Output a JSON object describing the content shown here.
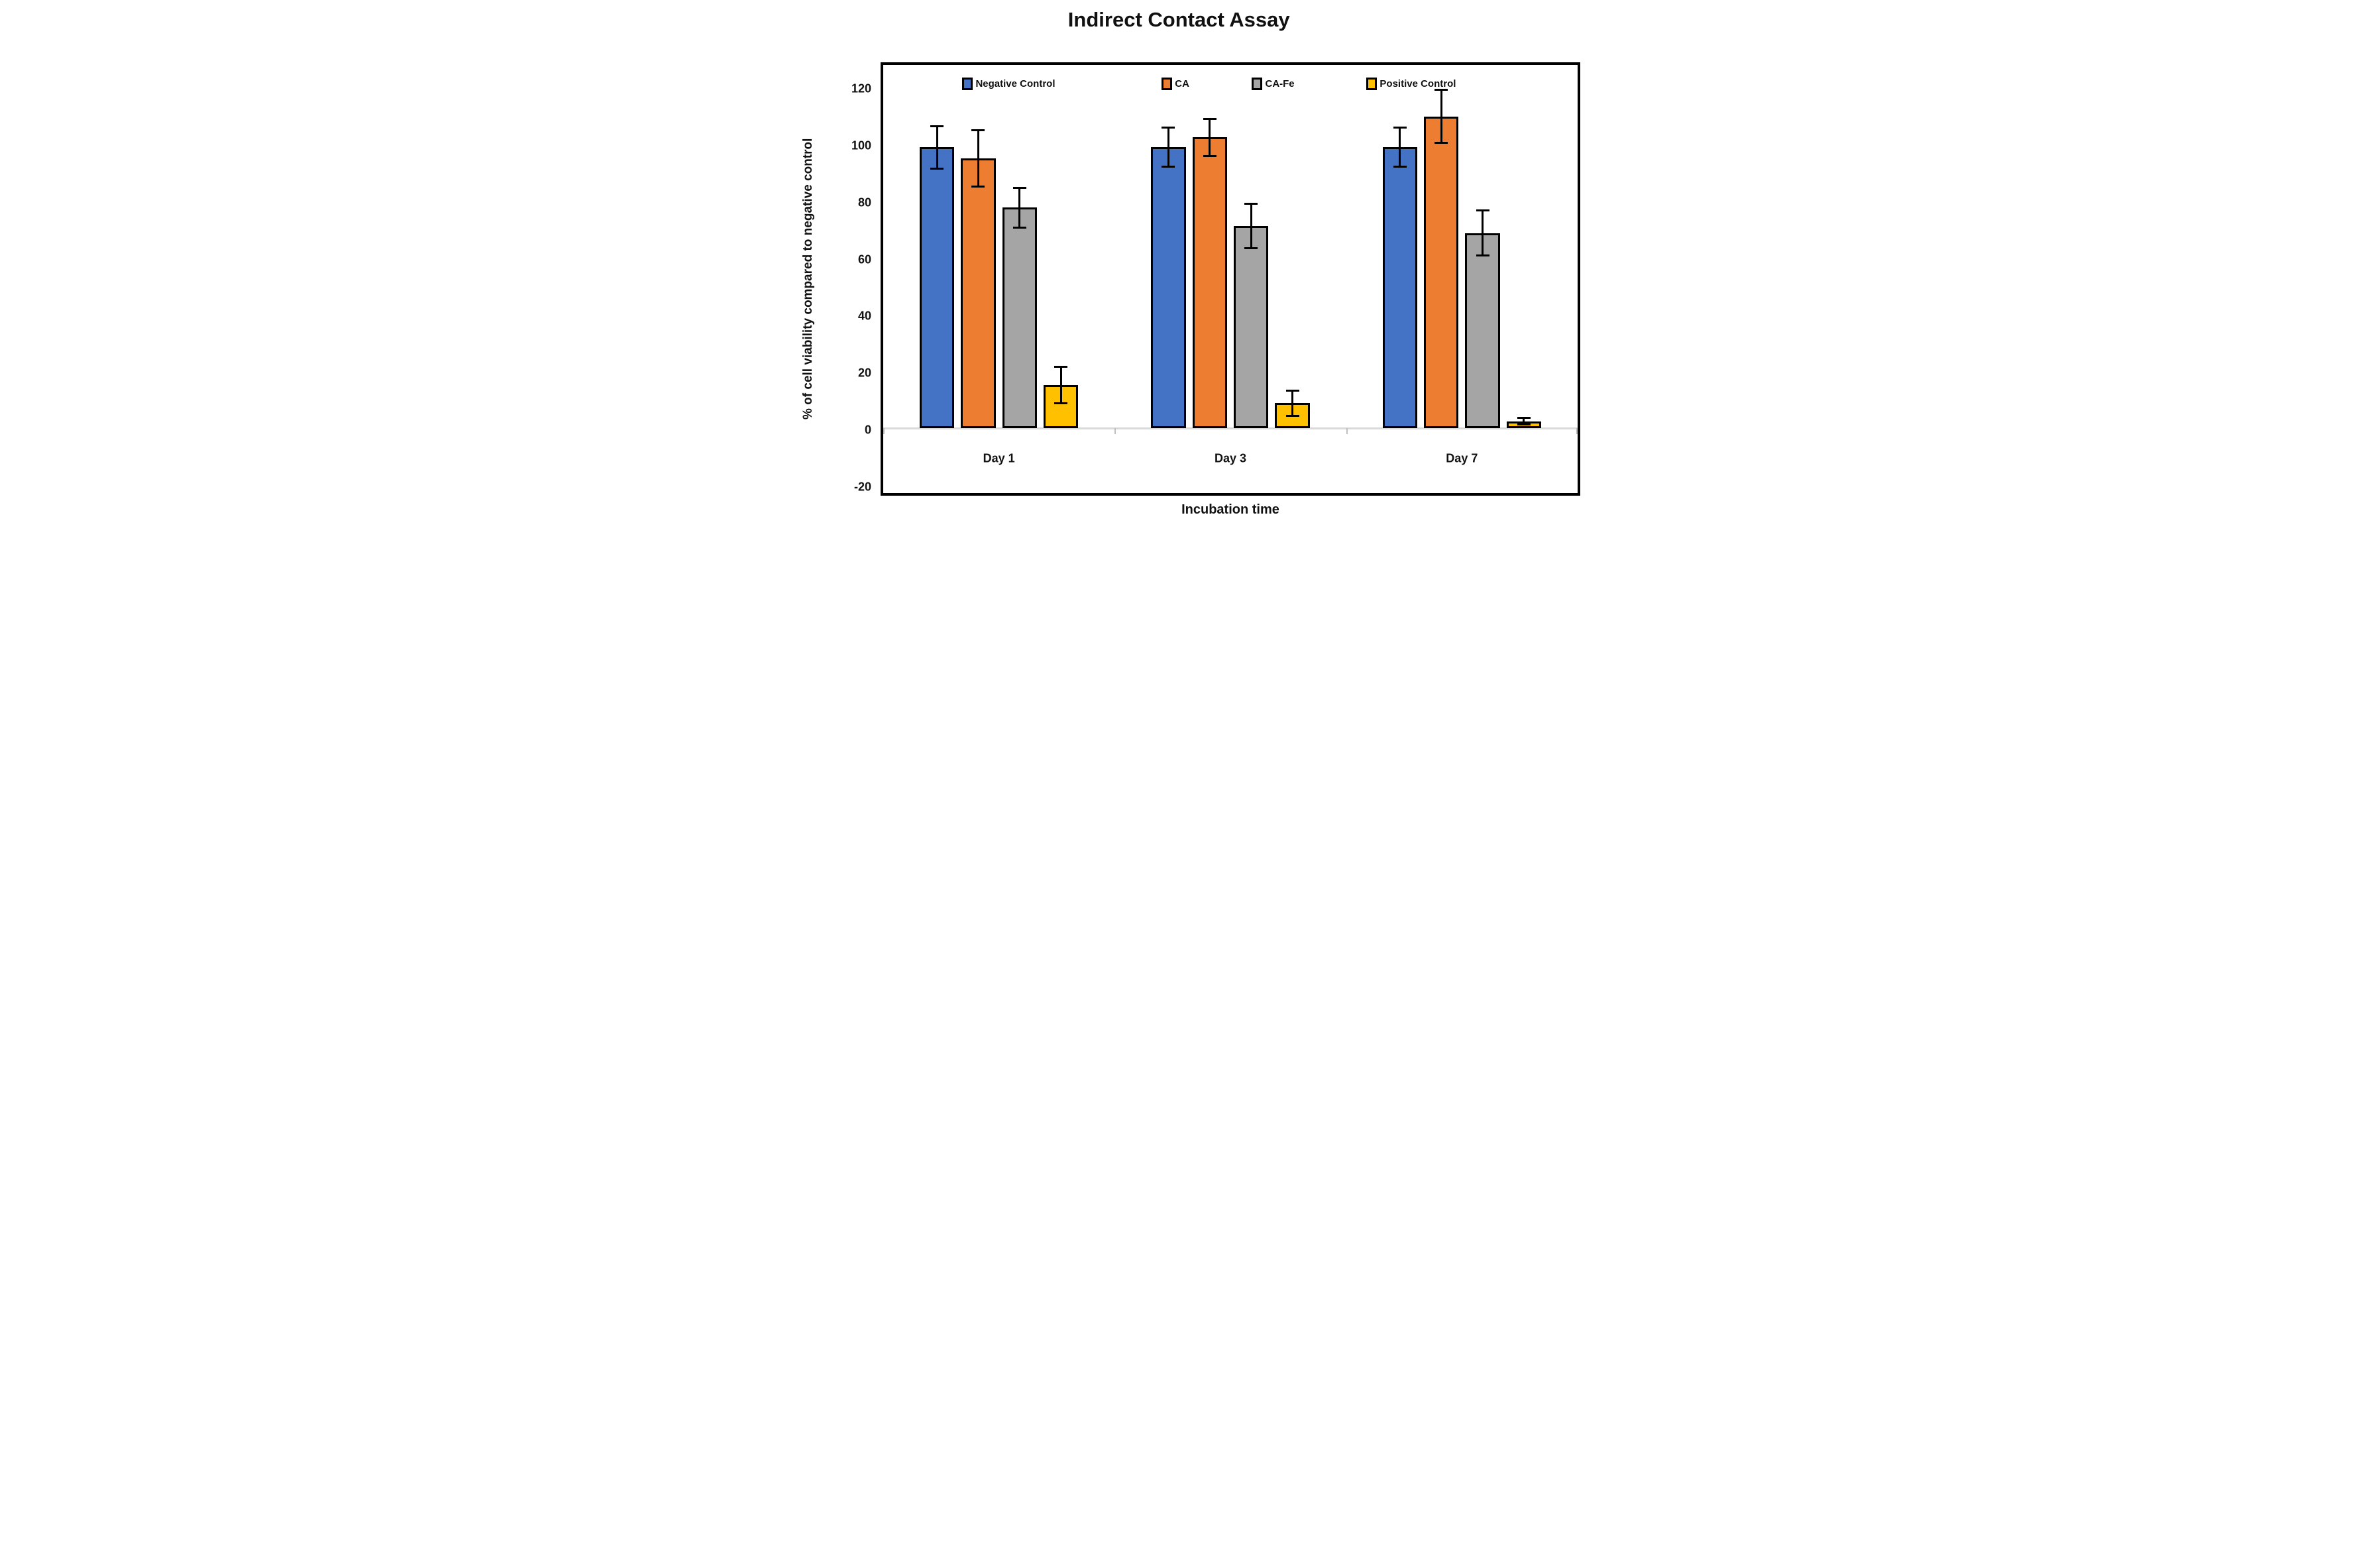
{
  "chart_data": {
    "type": "bar",
    "title": "Indirect Contact Assay",
    "xlabel": "Incubation time",
    "ylabel": "% of cell viability compared to negative control",
    "categories": [
      "Day 1",
      "Day 3",
      "Day 7"
    ],
    "series": [
      {
        "name": "Negative Control",
        "color": "#4472C4",
        "values": [
          100,
          100,
          100
        ],
        "errors": [
          7.5,
          7,
          7
        ]
      },
      {
        "name": "CA",
        "color": "#ED7D31",
        "values": [
          96,
          103.5,
          111
        ],
        "errors": [
          10,
          6.5,
          9.5
        ]
      },
      {
        "name": "CA-Fe",
        "color": "#A5A5A5",
        "values": [
          78.5,
          72,
          69.5
        ],
        "errors": [
          7,
          8,
          8
        ]
      },
      {
        "name": "Positive Control",
        "color": "#FFC000",
        "values": [
          15.5,
          9,
          2.5
        ],
        "errors": [
          6.5,
          4.5,
          1.2
        ]
      }
    ],
    "y_ticks": [
      120,
      100,
      80,
      60,
      40,
      20,
      0,
      -20
    ],
    "ylim": [
      -23,
      129.3
    ],
    "grid": false,
    "legend_position": "top-inside",
    "baseline_color": "#D9D9D9",
    "bar_border_color": "#000000",
    "error_bar_color": "#000000"
  }
}
